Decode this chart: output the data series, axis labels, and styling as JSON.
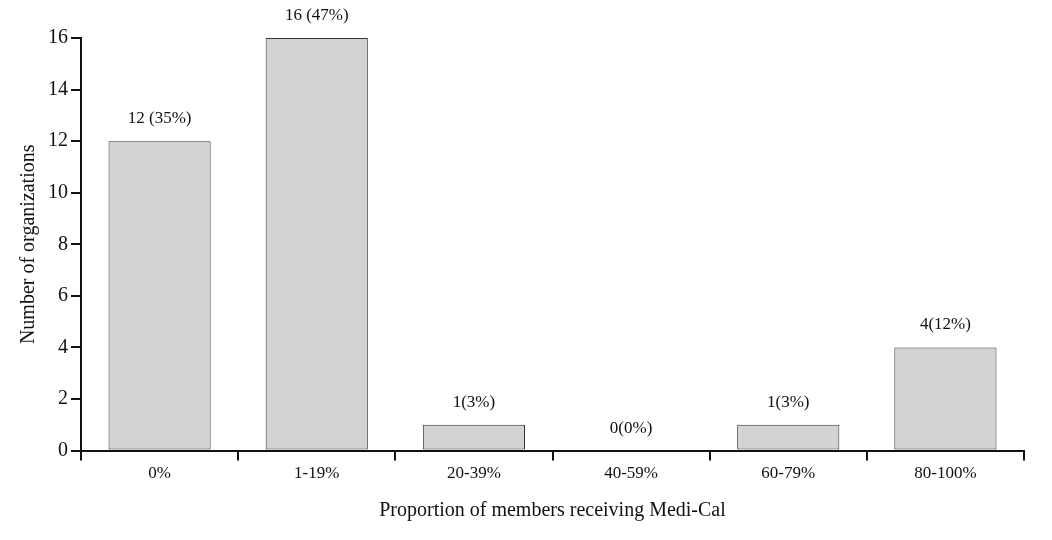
{
  "chart_data": {
    "type": "bar",
    "xlabel": "Proportion of members receiving Medi-Cal",
    "ylabel": "Number of organizations",
    "categories": [
      "0%",
      "1-19%",
      "20-39%",
      "40-59%",
      "60-79%",
      "80-100%"
    ],
    "values": [
      12,
      16,
      1,
      0,
      1,
      4
    ],
    "value_labels": [
      "12 (35%)",
      "16 (47%)",
      "1(3%)",
      "0(0%)",
      "1(3%)",
      "4(12%)"
    ],
    "color": "#d3d3d3",
    "ylim": [
      0,
      16
    ],
    "yticks": [
      0,
      2,
      4,
      6,
      8,
      10,
      12,
      14,
      16
    ],
    "grid": false,
    "legend": false
  }
}
